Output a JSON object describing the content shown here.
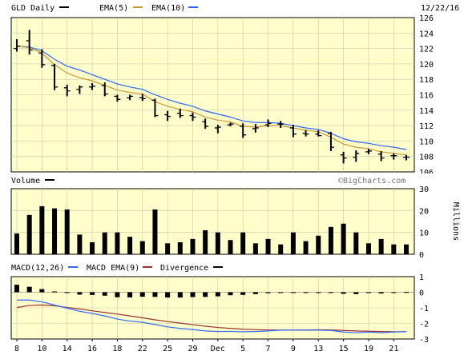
{
  "header": {
    "symbol_label": "GLD Daily",
    "ema5_label": "EMA(5)",
    "ema10_label": "EMA(10)",
    "date": "12/22/16"
  },
  "volume_header": {
    "label": "Volume",
    "watermark": "©BigCharts.com"
  },
  "macd_header": {
    "macd_label": "MACD(12,26)",
    "ema_label": "MACD EMA(9)",
    "div_label": "Divergence"
  },
  "colors": {
    "background": "#ffffcc",
    "price": "#000000",
    "ema5": "#cc9933",
    "ema10": "#3366ff",
    "macd": "#3366ff",
    "signal": "#993333",
    "grid": "#c8c8a8"
  },
  "x_axis": {
    "labels": [
      {
        "i": 0,
        "text": "8"
      },
      {
        "i": 2,
        "text": "10"
      },
      {
        "i": 4,
        "text": "14"
      },
      {
        "i": 6,
        "text": "16"
      },
      {
        "i": 8,
        "text": "18"
      },
      {
        "i": 10,
        "text": "22"
      },
      {
        "i": 12,
        "text": "25"
      },
      {
        "i": 14,
        "text": "29"
      },
      {
        "i": 16,
        "text": "Dec"
      },
      {
        "i": 18,
        "text": "5"
      },
      {
        "i": 20,
        "text": "7"
      },
      {
        "i": 22,
        "text": "9"
      },
      {
        "i": 24,
        "text": "13"
      },
      {
        "i": 26,
        "text": "15"
      },
      {
        "i": 28,
        "text": "19"
      },
      {
        "i": 30,
        "text": "21"
      }
    ]
  },
  "chart_data": [
    {
      "type": "ohlc",
      "title": "GLD Daily",
      "ylim": [
        106,
        126
      ],
      "yticks": [
        106,
        108,
        110,
        112,
        114,
        116,
        118,
        120,
        122,
        124,
        126
      ],
      "ohlc": [
        [
          122.0,
          123.2,
          121.6,
          122.3
        ],
        [
          123.0,
          124.4,
          121.2,
          121.8
        ],
        [
          121.4,
          121.9,
          119.5,
          119.9
        ],
        [
          119.8,
          120.0,
          116.6,
          117.0
        ],
        [
          116.9,
          117.3,
          115.8,
          116.5
        ],
        [
          116.7,
          117.2,
          116.1,
          117.0
        ],
        [
          117.0,
          117.5,
          116.6,
          117.1
        ],
        [
          117.2,
          117.6,
          115.8,
          116.1
        ],
        [
          115.8,
          116.0,
          115.1,
          115.4
        ],
        [
          115.6,
          116.0,
          115.3,
          115.8
        ],
        [
          115.6,
          116.1,
          115.2,
          115.5
        ],
        [
          115.3,
          115.5,
          113.1,
          113.3
        ],
        [
          113.4,
          113.9,
          112.6,
          113.2
        ],
        [
          113.6,
          114.2,
          113.0,
          113.3
        ],
        [
          113.3,
          113.7,
          112.6,
          113.1
        ],
        [
          112.5,
          112.9,
          111.6,
          111.9
        ],
        [
          111.7,
          112.1,
          111.0,
          111.8
        ],
        [
          112.1,
          112.4,
          111.9,
          112.2
        ],
        [
          111.9,
          112.3,
          110.4,
          110.8
        ],
        [
          111.6,
          112.2,
          111.1,
          111.7
        ],
        [
          112.1,
          112.8,
          111.8,
          112.3
        ],
        [
          112.2,
          112.6,
          111.7,
          112.2
        ],
        [
          111.7,
          112.1,
          110.5,
          110.9
        ],
        [
          111.0,
          111.4,
          110.6,
          110.9
        ],
        [
          110.9,
          111.4,
          110.6,
          110.7
        ],
        [
          111.0,
          111.2,
          108.7,
          109.2
        ],
        [
          108.2,
          108.6,
          107.1,
          107.8
        ],
        [
          107.9,
          108.8,
          107.3,
          108.4
        ],
        [
          108.6,
          109.0,
          108.3,
          108.7
        ],
        [
          108.3,
          108.7,
          107.4,
          107.8
        ],
        [
          108.1,
          108.4,
          107.6,
          108.1
        ],
        [
          107.9,
          108.2,
          107.5,
          107.9
        ]
      ],
      "ema5": [
        122.3,
        122.1,
        121.4,
        119.9,
        118.8,
        118.2,
        117.8,
        117.2,
        116.6,
        116.3,
        116.1,
        115.1,
        114.5,
        114.1,
        113.8,
        113.1,
        112.7,
        112.5,
        111.9,
        111.8,
        112.0,
        112.0,
        111.7,
        111.4,
        111.2,
        110.5,
        109.6,
        109.2,
        109.0,
        108.6,
        108.4,
        108.2
      ],
      "ema10": [
        122.3,
        122.2,
        121.7,
        120.6,
        119.7,
        119.2,
        118.6,
        118.0,
        117.4,
        117.0,
        116.7,
        116.0,
        115.4,
        114.9,
        114.5,
        113.9,
        113.5,
        113.1,
        112.6,
        112.4,
        112.4,
        112.3,
        112.0,
        111.7,
        111.5,
        111.0,
        110.3,
        109.9,
        109.7,
        109.4,
        109.2,
        108.9
      ]
    },
    {
      "type": "bar",
      "title": "Volume",
      "ylabel": "Millions",
      "ylim": [
        0,
        30
      ],
      "yticks": [
        0,
        10,
        20,
        30
      ],
      "values": [
        9.5,
        18,
        22,
        21,
        20.5,
        9,
        5.5,
        10,
        10,
        8,
        6,
        20.5,
        5,
        5.5,
        7,
        11,
        10,
        6.5,
        10,
        5,
        7,
        4.5,
        10,
        6,
        8.5,
        12.5,
        14,
        10,
        5,
        7,
        4.5,
        4.5
      ]
    },
    {
      "type": "line",
      "title": "MACD(12,26)",
      "ylim": [
        -3,
        1
      ],
      "yticks": [
        -3,
        -2,
        -1,
        0,
        1
      ],
      "macd": [
        -0.5,
        -0.5,
        -0.62,
        -0.82,
        -1.02,
        -1.22,
        -1.36,
        -1.52,
        -1.72,
        -1.85,
        -1.93,
        -2.07,
        -2.22,
        -2.32,
        -2.39,
        -2.48,
        -2.52,
        -2.51,
        -2.54,
        -2.52,
        -2.48,
        -2.43,
        -2.43,
        -2.43,
        -2.43,
        -2.45,
        -2.55,
        -2.6,
        -2.55,
        -2.6,
        -2.55,
        -2.52
      ],
      "signal": [
        -0.98,
        -0.85,
        -0.82,
        -0.87,
        -0.97,
        -1.07,
        -1.19,
        -1.3,
        -1.4,
        -1.52,
        -1.64,
        -1.77,
        -1.88,
        -1.98,
        -2.08,
        -2.18,
        -2.26,
        -2.32,
        -2.37,
        -2.4,
        -2.42,
        -2.43,
        -2.43,
        -2.42,
        -2.41,
        -2.42,
        -2.45,
        -2.48,
        -2.5,
        -2.52,
        -2.53,
        -2.53
      ],
      "divergence": [
        0.48,
        0.35,
        0.2,
        0.05,
        -0.05,
        -0.15,
        -0.17,
        -0.22,
        -0.32,
        -0.33,
        -0.29,
        -0.3,
        -0.34,
        -0.34,
        -0.31,
        -0.3,
        -0.26,
        -0.19,
        -0.17,
        -0.12,
        -0.06,
        0.0,
        0.0,
        -0.01,
        -0.02,
        -0.03,
        -0.1,
        -0.12,
        -0.05,
        -0.08,
        -0.02,
        0.01
      ]
    }
  ]
}
